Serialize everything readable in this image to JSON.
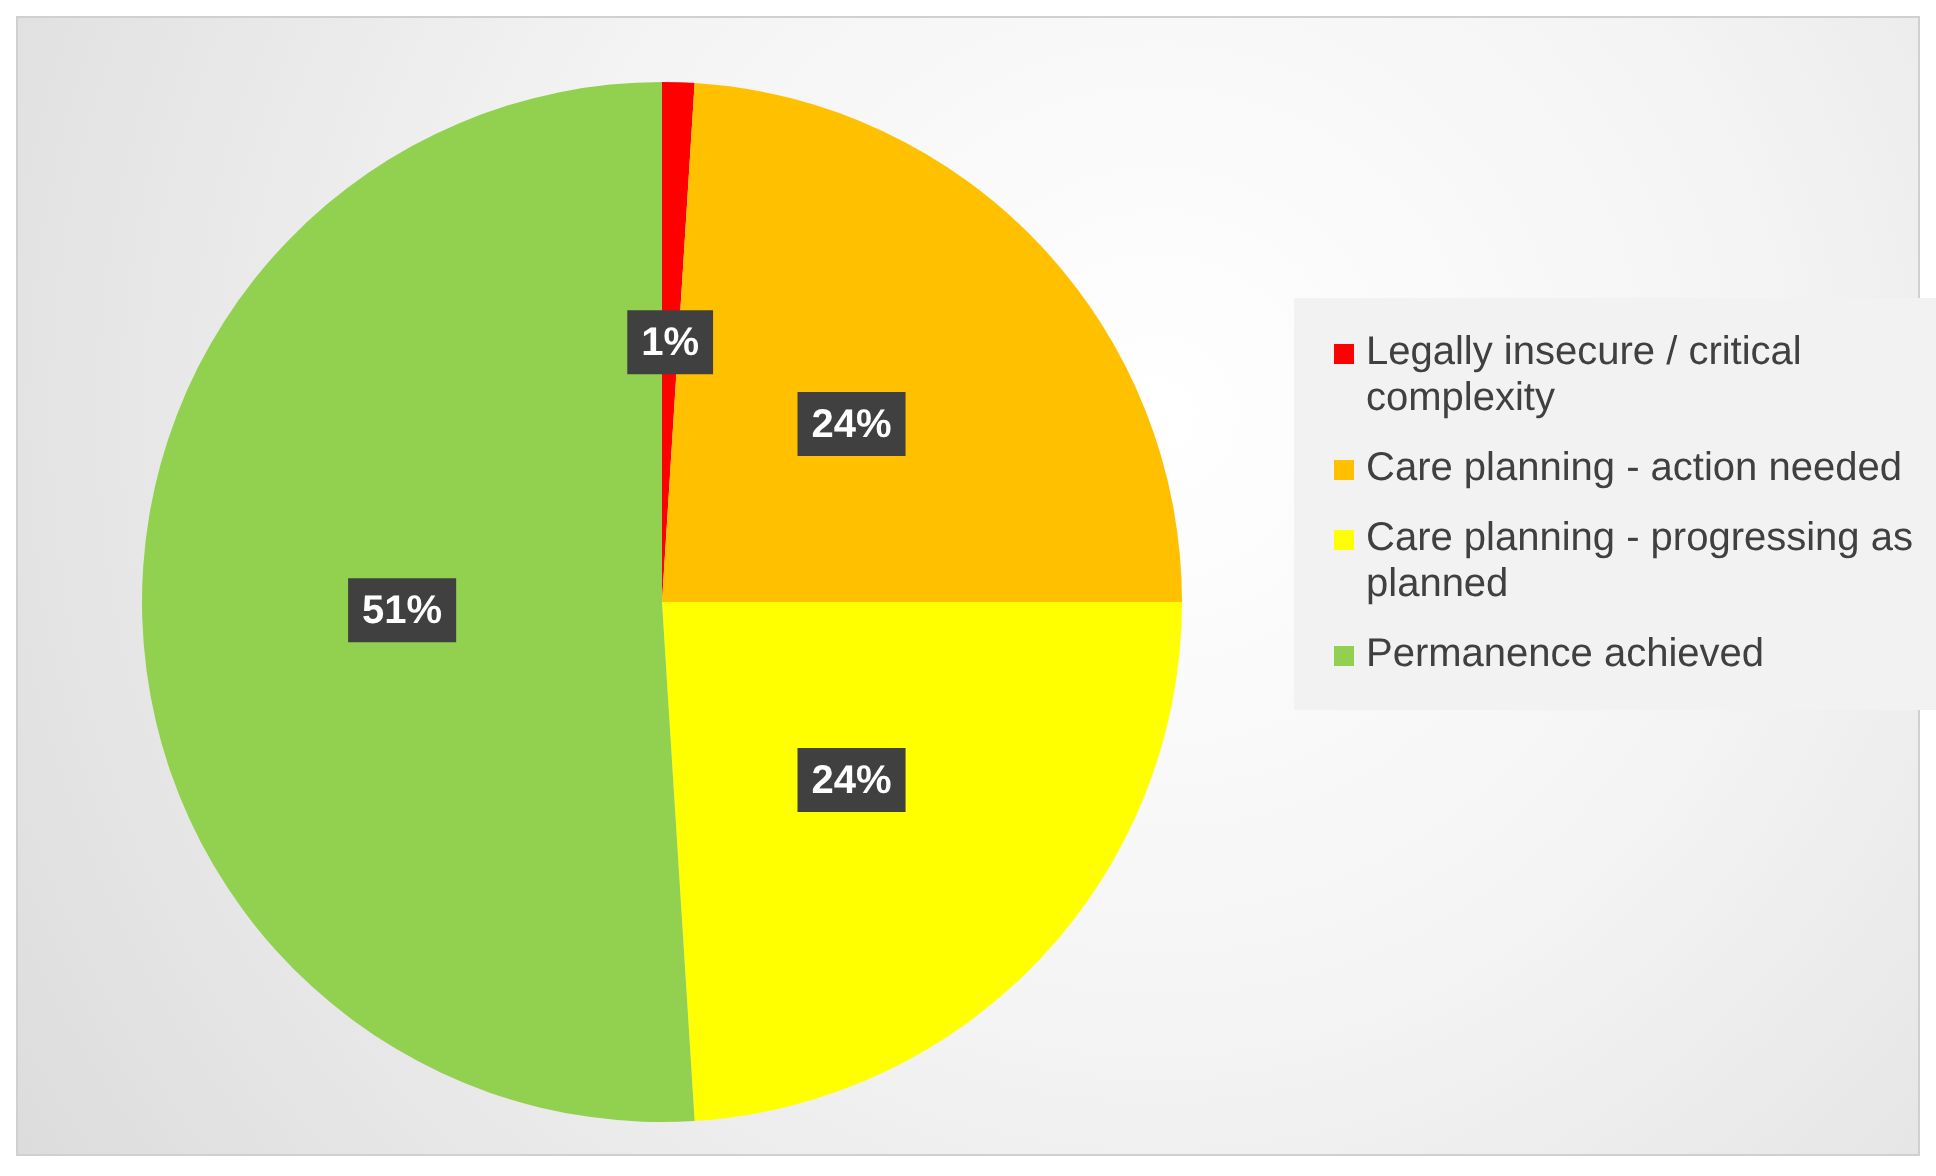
{
  "chart_data": {
    "type": "pie",
    "categories": [
      "Legally insecure / critical complexity",
      "Care planning - action needed",
      "Care planning - progressing as planned",
      "Permanence achieved"
    ],
    "values": [
      1,
      24,
      24,
      51
    ],
    "colors": [
      "#ff0000",
      "#ffc000",
      "#ffff00",
      "#92d050"
    ],
    "value_labels": [
      "1%",
      "24%",
      "24%",
      "51%"
    ],
    "legend": "right"
  }
}
